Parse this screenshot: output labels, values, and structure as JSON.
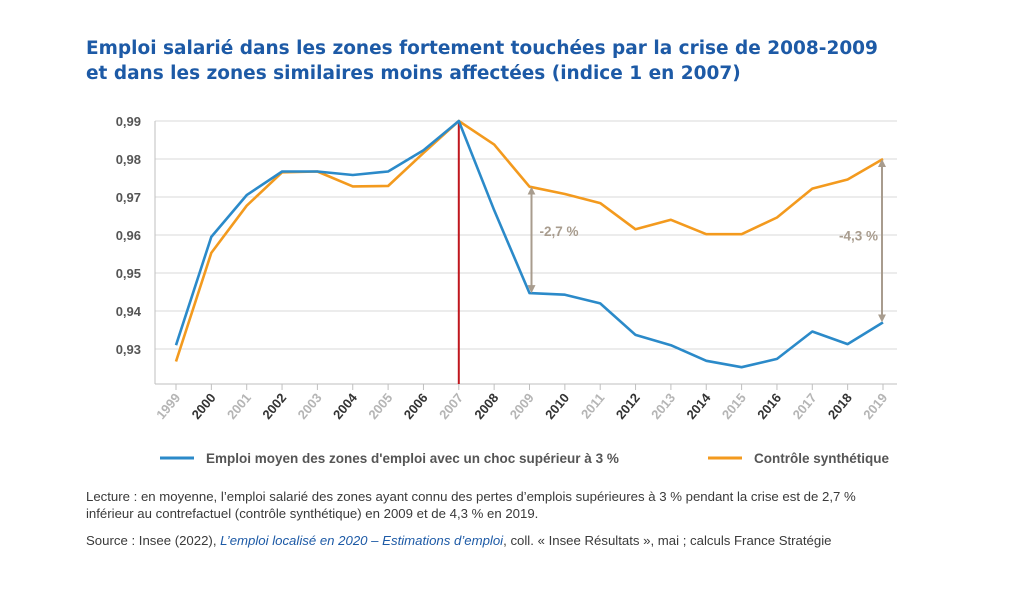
{
  "title": {
    "line1": "Emploi salarié dans les zones fortement touchées par la crise de 2008-2009",
    "line2": "et dans les zones similaires moins affectées (indice 1 en 2007)"
  },
  "chart_data": {
    "type": "line",
    "x": [
      "1999",
      "2000",
      "2001",
      "2002",
      "2003",
      "2004",
      "2005",
      "2006",
      "2007",
      "2008",
      "2009",
      "2010",
      "2011",
      "2012",
      "2013",
      "2014",
      "2015",
      "2016",
      "2017",
      "2018",
      "2019"
    ],
    "x_bold": [
      false,
      true,
      false,
      true,
      false,
      true,
      false,
      true,
      false,
      true,
      false,
      true,
      false,
      true,
      false,
      true,
      false,
      true,
      false,
      true,
      false
    ],
    "ylim": [
      0.92,
      0.99
    ],
    "yticks": [
      "0,99",
      "0,98",
      "0,97",
      "0,96",
      "0,95",
      "0,94",
      "0,93"
    ],
    "ytick_values": [
      0.99,
      0.98,
      0.97,
      0.96,
      0.95,
      0.94,
      0.93
    ],
    "series": [
      {
        "name": "Emploi moyen des zones d'emploi avec un choc supérieur à 3 %",
        "color": "#2b8ac9",
        "values": [
          0.931,
          0.9595,
          0.9705,
          0.9767,
          0.9767,
          0.9758,
          0.9767,
          0.9823,
          0.99,
          0.9665,
          0.9447,
          0.9443,
          0.942,
          0.9337,
          0.931,
          0.9269,
          0.9252,
          0.9274,
          0.9346,
          0.9313,
          0.937
        ]
      },
      {
        "name": "Contrôle synthétique",
        "color": "#f39a1e",
        "values": [
          0.9267,
          0.9553,
          0.9677,
          0.9765,
          0.9767,
          0.9728,
          0.9729,
          0.9816,
          0.99,
          0.9838,
          0.9727,
          0.9708,
          0.9684,
          0.9615,
          0.964,
          0.9602,
          0.9602,
          0.9646,
          0.9722,
          0.9746,
          0.98
        ]
      }
    ],
    "vline": {
      "year": "2007",
      "color": "#c0171e"
    },
    "annotations": [
      {
        "text": "-2,7 %",
        "year": "2009",
        "from": 0.9447,
        "to": 0.9727
      },
      {
        "text": "-4,3 %",
        "year": "2019",
        "from": 0.937,
        "to": 0.98
      }
    ],
    "annotation_color": "#a89c8e",
    "legend_position": "bottom"
  },
  "notes": {
    "lecture_line1": "Lecture : en moyenne, l’emploi salarié des zones ayant connu des pertes d’emplois supérieures à 3 % pendant la crise est de 2,7 %",
    "lecture_line2": "inférieur au contrefactuel (contrôle synthétique) en 2009 et de 4,3 % en 2019.",
    "source_prefix": "Source : Insee (2022), ",
    "source_title": "L’emploi localisé en 2020 – Estimations d’emploi",
    "source_suffix": ", coll. « Insee Résultats », mai ; calculs France Stratégie"
  }
}
